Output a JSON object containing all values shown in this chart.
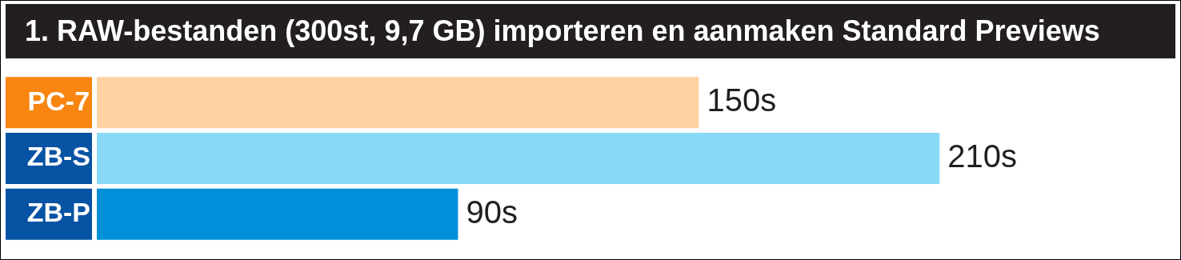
{
  "chart_data": {
    "type": "bar",
    "orientation": "horizontal",
    "title": "1. RAW-bestanden (300st, 9,7 GB) importeren en aanmaken Standard Previews",
    "categories": [
      "PC-7",
      "ZB-S",
      "ZB-P"
    ],
    "values": [
      150,
      210,
      90
    ],
    "colors": [
      "#ffd1a3",
      "#88d9f6",
      "#0090d9"
    ],
    "value_labels": [
      "150s",
      "210s",
      "90s"
    ],
    "tick_labels": "y",
    "legend": false
  }
}
